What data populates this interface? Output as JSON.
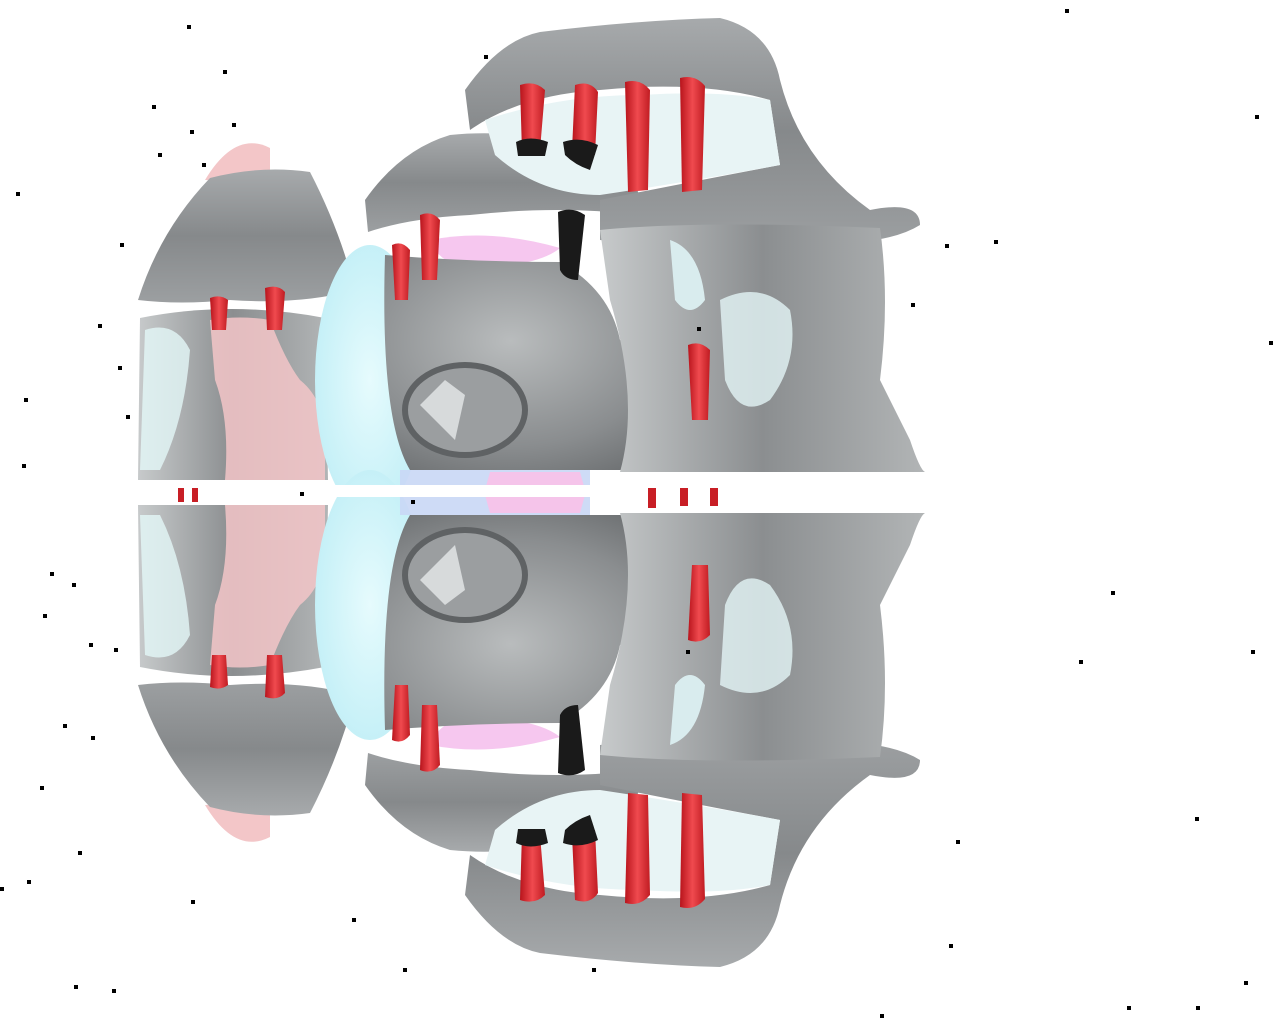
{
  "scene": {
    "background_color": "#ffffff",
    "surface_color": "#8f9294",
    "highlight_color": "#d8f4f5",
    "accent_color": "#e8343a",
    "tint_color": "#f3c6c8",
    "glow_color": "#c8f0f7",
    "speck_color": "#000000"
  }
}
